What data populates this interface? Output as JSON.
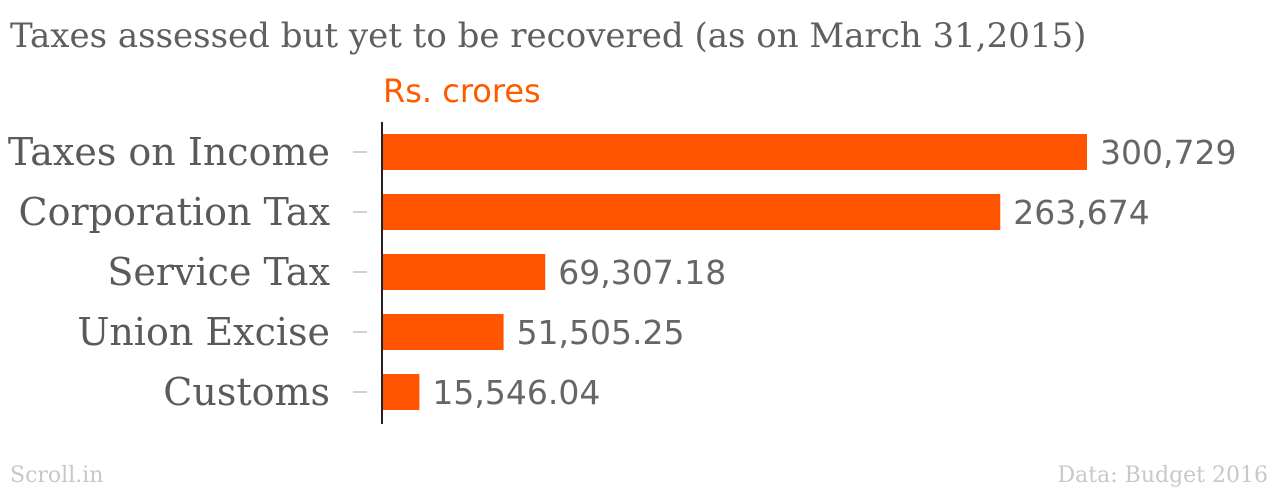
{
  "chart_data": {
    "type": "bar",
    "orientation": "horizontal",
    "title": "Taxes assessed but yet to be recovered (as on March 31,2015)",
    "unit_label": "Rs. crores",
    "categories": [
      "Taxes on Income",
      "Corporation Tax",
      "Service Tax",
      "Union Excise",
      "Customs"
    ],
    "values": [
      300729,
      263674,
      69307.18,
      51505.25,
      15546.04
    ],
    "value_labels": [
      "300,729",
      "263,674",
      "69,307.18",
      "51,505.25",
      "15,546.04"
    ],
    "xlim": [
      0,
      300729
    ],
    "grid": false,
    "bar_color": "#ff5400"
  },
  "footer": {
    "source_left": "Scroll.in",
    "source_right": "Data: Budget 2016"
  }
}
